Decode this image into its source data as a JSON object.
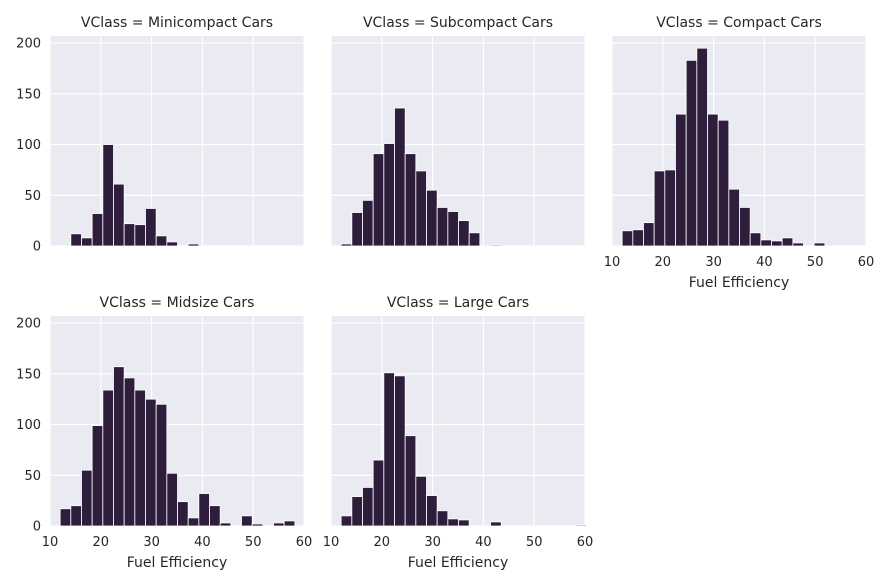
{
  "chart_data": {
    "type": "bar",
    "style": "faceted histogram",
    "grid": true,
    "x_ticks": [
      10,
      20,
      30,
      40,
      50,
      60
    ],
    "y_ticks": [
      0,
      50,
      100,
      150,
      200
    ],
    "xlim": [
      10,
      60
    ],
    "ylim": [
      0,
      207
    ],
    "bin_width": 2.1,
    "bin_start": 12.0,
    "bar_color": "#2e1e3b",
    "background_color": "#eaeaf2",
    "grid_color": "#ffffff",
    "xlabel": "Fuel Efficiency",
    "panels": [
      {
        "title": "VClass = Minicompact Cars",
        "values": [
          0,
          12,
          8,
          32,
          100,
          61,
          22,
          21,
          37,
          10,
          4,
          0,
          2,
          0,
          0,
          0,
          0,
          0,
          0,
          0,
          0,
          0,
          0
        ],
        "xlabel_shown": false
      },
      {
        "title": "VClass = Subcompact Cars",
        "values": [
          2,
          33,
          45,
          91,
          101,
          136,
          91,
          74,
          55,
          38,
          34,
          25,
          13,
          0,
          1,
          0,
          0,
          0,
          0,
          0,
          0,
          0,
          0
        ],
        "xlabel_shown": false
      },
      {
        "title": "VClass = Compact Cars",
        "values": [
          15,
          16,
          23,
          74,
          75,
          130,
          183,
          195,
          130,
          124,
          56,
          38,
          13,
          6,
          5,
          8,
          3,
          0,
          3,
          0,
          0,
          0,
          0
        ],
        "xlabel_shown": true
      },
      {
        "title": "VClass = Midsize Cars",
        "values": [
          17,
          20,
          55,
          99,
          134,
          157,
          146,
          134,
          125,
          120,
          52,
          24,
          8,
          32,
          20,
          3,
          0,
          10,
          2,
          0,
          3,
          5,
          0
        ],
        "xlabel_shown": true
      },
      {
        "title": "VClass = Large Cars",
        "values": [
          10,
          29,
          38,
          65,
          151,
          148,
          89,
          49,
          30,
          15,
          7,
          6,
          0,
          0,
          4,
          0,
          0,
          0,
          0,
          0,
          0,
          0,
          1
        ],
        "xlabel_shown": true
      }
    ]
  }
}
